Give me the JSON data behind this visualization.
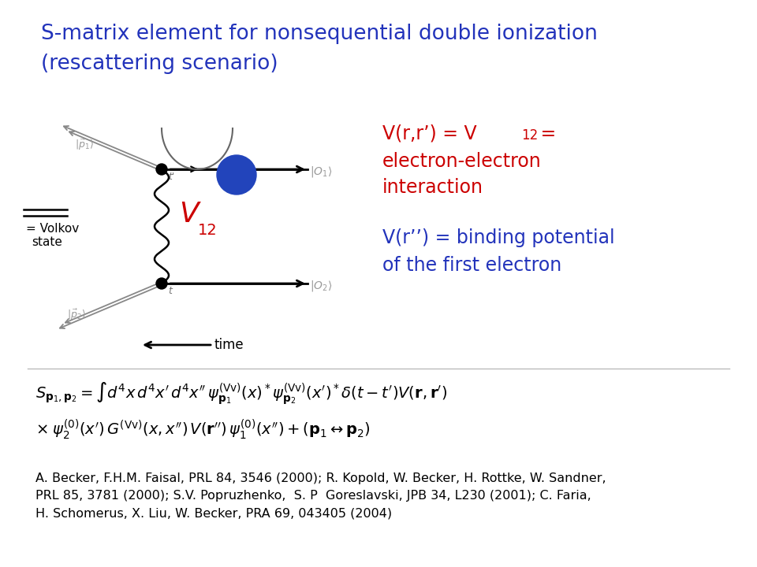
{
  "title_line1": "S-matrix element for nonsequential double ionization",
  "title_line2": "(rescattering scenario)",
  "title_color": "#2233bb",
  "title_fontsize": 19,
  "v12_color": "#cc0000",
  "red_color": "#cc0000",
  "blue_color": "#2233bb",
  "text_fontsize": 17,
  "ref_text": "A. Becker, F.H.M. Faisal, PRL 84, 3546 (2000); R. Kopold, W. Becker, H. Rottke, W. Sandner,\nPRL 85, 3781 (2000); S.V. Popruzhenko,  S. P  Goreslavski, JPB 34, L230 (2001); C. Faria,\nH. Schomerus, X. Liu, W. Becker, PRA 69, 043405 (2004)",
  "background_color": "#ffffff"
}
